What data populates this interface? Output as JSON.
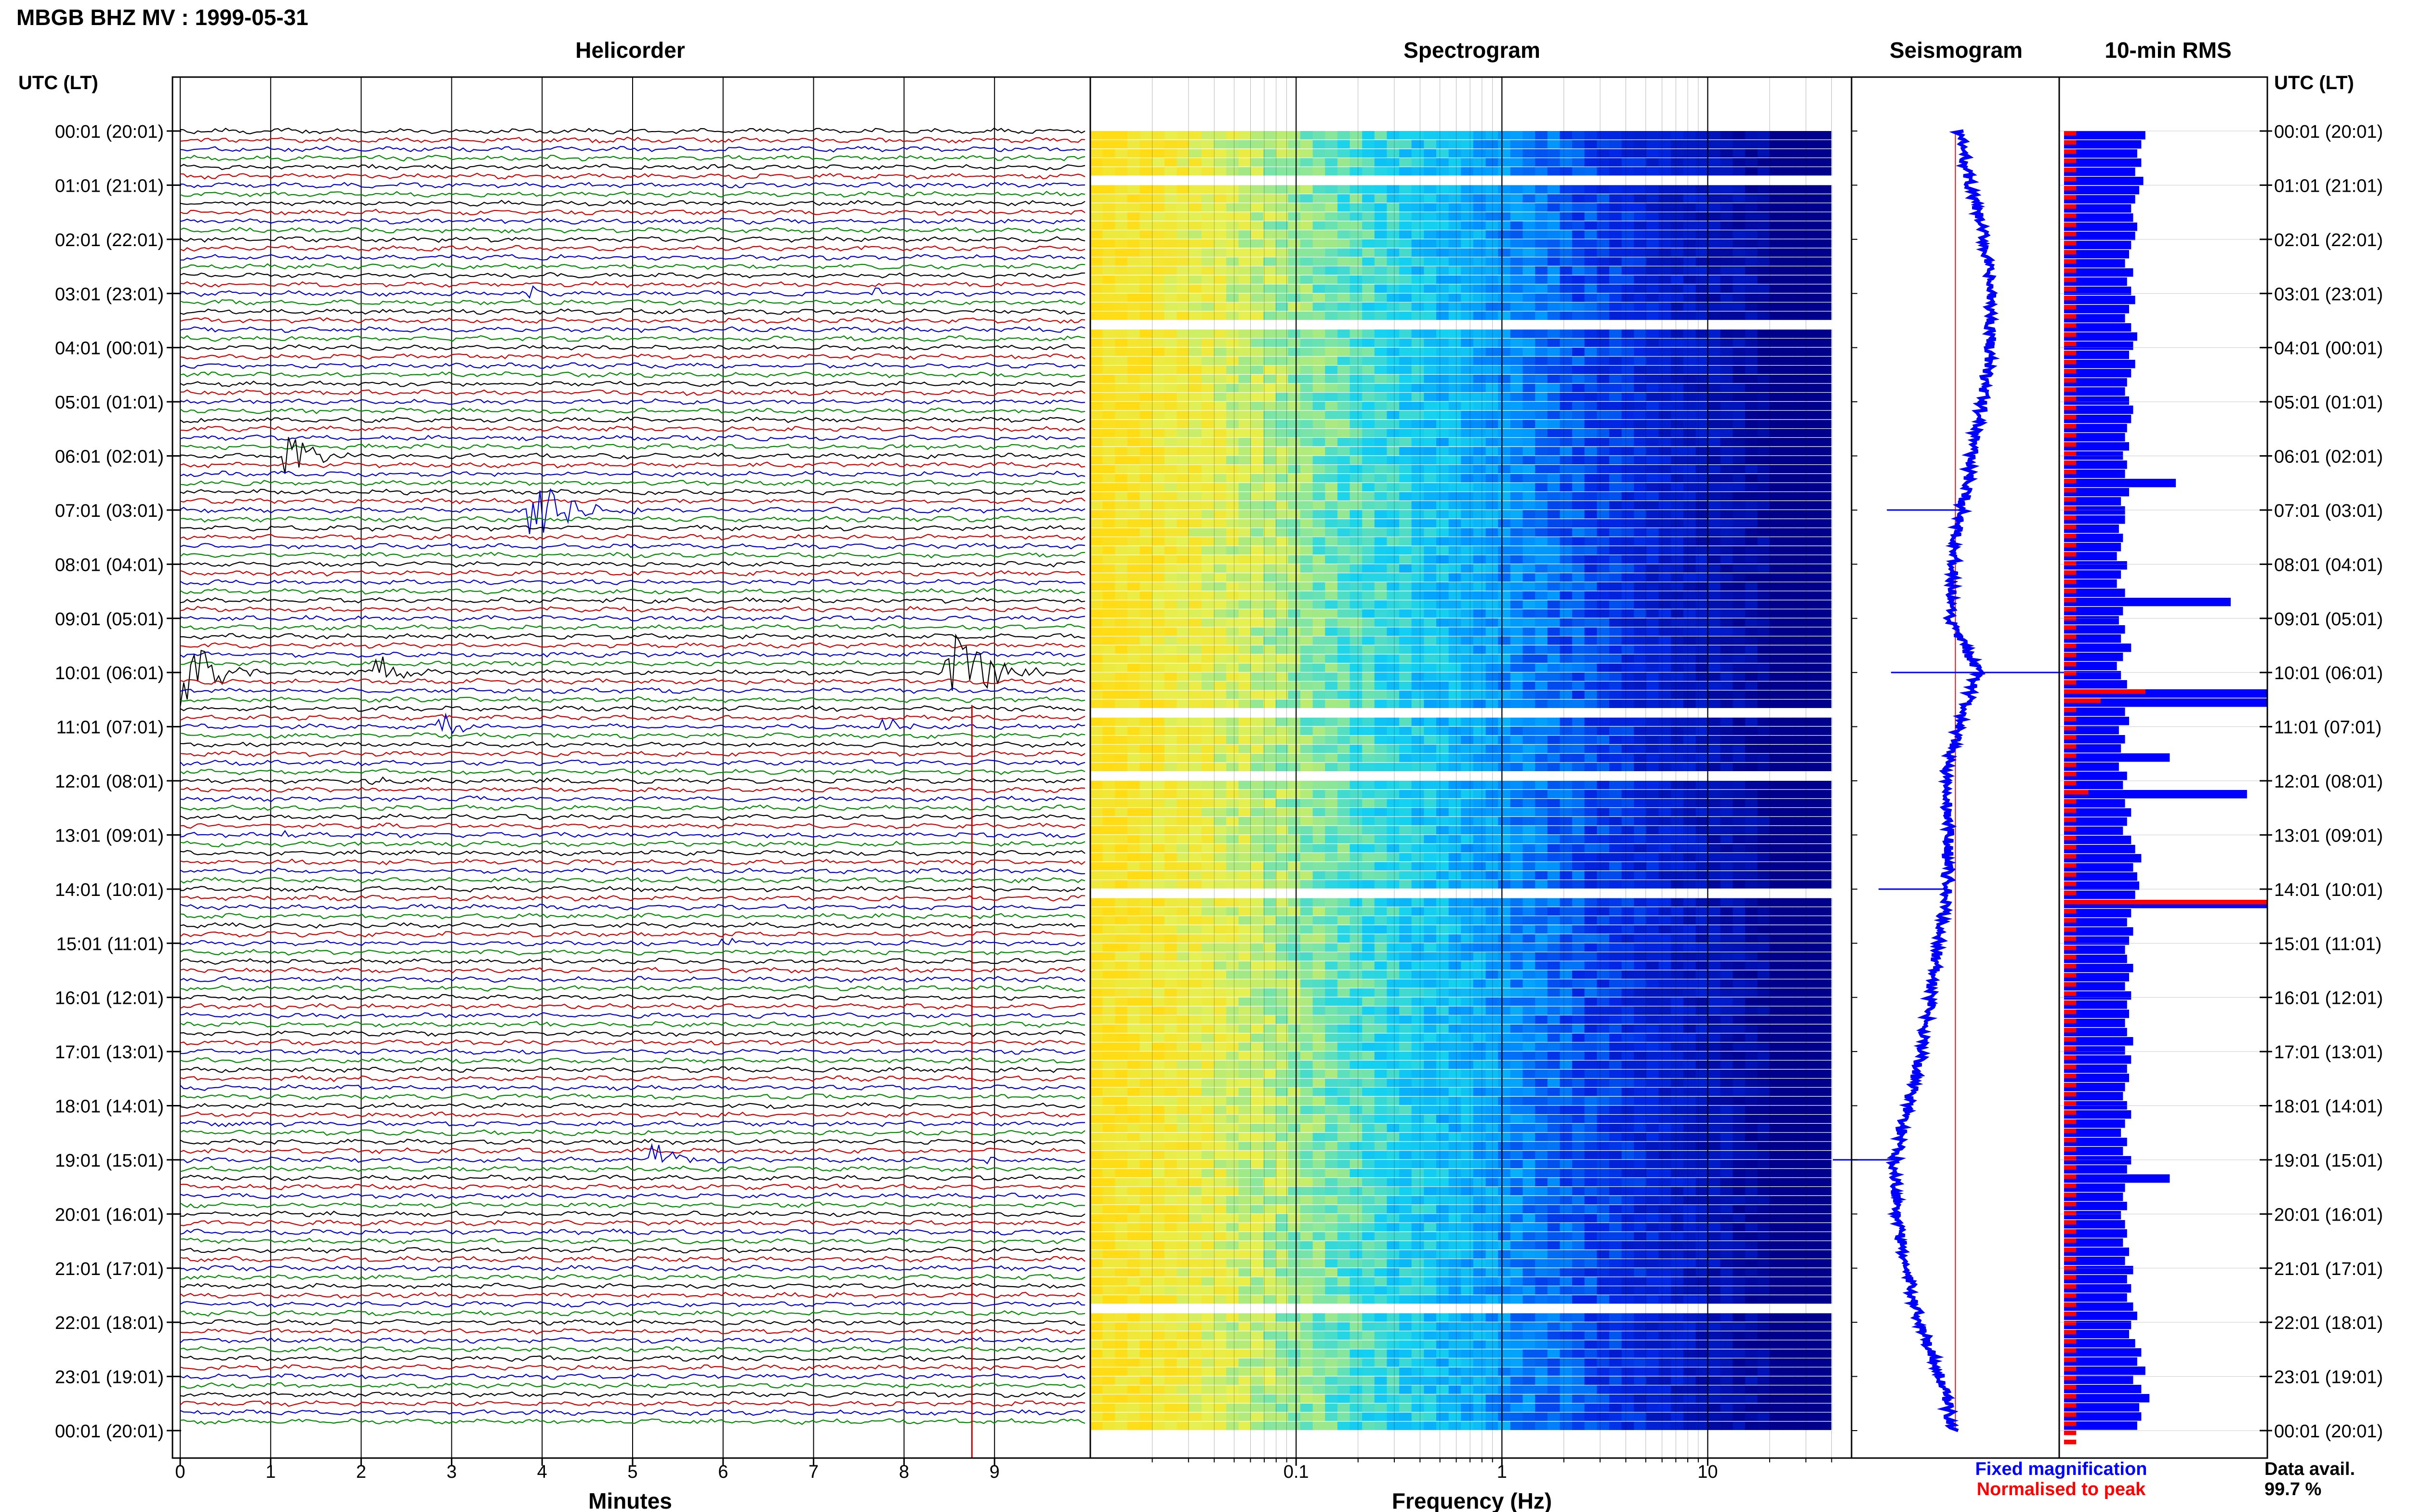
{
  "header": {
    "title": "MBGB BHZ MV : 1999-05-31"
  },
  "panels": {
    "helicorder": "Helicorder",
    "spectrogram": "Spectrogram",
    "seismogram": "Seismogram",
    "rms": "10-min RMS"
  },
  "axis": {
    "time_header_left": "UTC (LT)",
    "time_header_right": "UTC (LT)",
    "minutes_label": "Minutes",
    "frequency_label": "Frequency (Hz)"
  },
  "time_labels": [
    "00:01 (20:01)",
    "01:01 (21:01)",
    "02:01 (22:01)",
    "03:01 (23:01)",
    "04:01 (00:01)",
    "05:01 (01:01)",
    "06:01 (02:01)",
    "07:01 (03:01)",
    "08:01 (04:01)",
    "09:01 (05:01)",
    "10:01 (06:01)",
    "11:01 (07:01)",
    "12:01 (08:01)",
    "13:01 (09:01)",
    "14:01 (10:01)",
    "15:01 (11:01)",
    "16:01 (12:01)",
    "17:01 (13:01)",
    "18:01 (14:01)",
    "19:01 (15:01)",
    "20:01 (16:01)",
    "21:01 (17:01)",
    "22:01 (18:01)",
    "23:01 (19:01)",
    "00:01 (20:01)"
  ],
  "footer": {
    "legend_fixed": "Fixed magnification",
    "legend_normalised": "Normalised to peak",
    "data_avail_label": "Data avail.",
    "data_avail_value": "99.7 %"
  },
  "colors": {
    "trace_cycle": [
      "#000000",
      "#cc0000",
      "#0000cc",
      "#008800"
    ],
    "fixed": "#0000ff",
    "normalised": "#ff0000"
  },
  "chart_data": [
    {
      "type": "line",
      "name": "helicorder",
      "title": "Helicorder",
      "xlabel": "Minutes",
      "x_ticks": [
        0,
        1,
        2,
        3,
        4,
        5,
        6,
        7,
        8,
        9
      ],
      "xlim": [
        0,
        10
      ],
      "lines_per_hour": 6,
      "hours": 24,
      "events": [
        {
          "hour": 3,
          "minute": 3.9,
          "amp": 0.4,
          "dur": 0.3
        },
        {
          "hour": 3,
          "minute": 7.7,
          "amp": 0.35,
          "dur": 0.3
        },
        {
          "hour": 6,
          "minute": 1.2,
          "amp": 1.1,
          "dur": 0.8
        },
        {
          "hour": 7,
          "minute": 3.9,
          "amp": 1.8,
          "dur": 1.2
        },
        {
          "hour": 10,
          "minute": 0.0,
          "amp": 2.5,
          "dur": 1.0
        },
        {
          "hour": 10,
          "minute": 2.2,
          "amp": 0.9,
          "dur": 0.8
        },
        {
          "hour": 10,
          "minute": 8.5,
          "amp": 2.2,
          "dur": 1.4
        },
        {
          "hour": 11,
          "minute": 2.9,
          "amp": 1.2,
          "dur": 0.4
        },
        {
          "hour": 11,
          "minute": 7.8,
          "amp": 0.5,
          "dur": 1.0
        },
        {
          "hour": 12,
          "minute": 2.1,
          "amp": 0.4,
          "dur": 0.4
        },
        {
          "hour": 13,
          "minute": 1.2,
          "amp": 0.35,
          "dur": 0.3
        },
        {
          "hour": 15,
          "minute": 6.0,
          "amp": 0.45,
          "dur": 0.4
        },
        {
          "hour": 19,
          "minute": 5.2,
          "amp": 1.2,
          "dur": 0.7
        },
        {
          "hour": 19,
          "minute": 8.9,
          "amp": 0.4,
          "dur": 0.3
        }
      ]
    },
    {
      "type": "heatmap",
      "name": "spectrogram",
      "title": "Spectrogram",
      "xlabel": "Frequency (Hz)",
      "x_scale": "log",
      "xlim": [
        0.01,
        50
      ],
      "x_tick_labels": [
        "0.1",
        "1",
        "10"
      ],
      "x_tick_values": [
        0.1,
        1,
        10
      ],
      "fmax": 40,
      "gap_rows": [
        5,
        21,
        64,
        71,
        84,
        130,
        145
      ]
    },
    {
      "type": "line",
      "name": "seismogram",
      "title": "Seismogram",
      "series": [
        {
          "name": "Fixed magnification",
          "color": "#0000ff",
          "hourly_offset": [
            0.52,
            0.57,
            0.64,
            0.67,
            0.67,
            0.63,
            0.58,
            0.53,
            0.49,
            0.47,
            0.61,
            0.51,
            0.45,
            0.47,
            0.46,
            0.42,
            0.38,
            0.34,
            0.27,
            0.21,
            0.22,
            0.26,
            0.33,
            0.43,
            0.49
          ],
          "spikes": [
            {
              "hour": 7,
              "value": -0.6
            },
            {
              "hour": 10,
              "value": 0.98
            },
            {
              "hour": 10,
              "value": -0.7
            },
            {
              "hour": 14,
              "value": -0.55
            },
            {
              "hour": 19,
              "value": -0.5
            }
          ]
        },
        {
          "name": "Normalised to peak",
          "color": "#ff0000",
          "offset": 0.5
        }
      ]
    },
    {
      "type": "bar",
      "name": "10-min RMS",
      "title": "10-min RMS",
      "series": [
        {
          "name": "Fixed magnification",
          "color": "#0000ff",
          "values": [
            0.4,
            0.38,
            0.36,
            0.38,
            0.35,
            0.39,
            0.37,
            0.35,
            0.33,
            0.34,
            0.36,
            0.35,
            0.33,
            0.32,
            0.3,
            0.34,
            0.31,
            0.33,
            0.35,
            0.32,
            0.3,
            0.33,
            0.36,
            0.34,
            0.32,
            0.35,
            0.33,
            0.31,
            0.3,
            0.32,
            0.34,
            0.33,
            0.31,
            0.3,
            0.32,
            0.29,
            0.31,
            0.3,
            0.55,
            0.32,
            0.28,
            0.3,
            0.3,
            0.27,
            0.29,
            0.28,
            0.26,
            0.31,
            0.28,
            0.26,
            0.3,
            0.82,
            0.29,
            0.27,
            0.3,
            0.28,
            0.33,
            0.29,
            0.26,
            0.28,
            0.31,
            1.0,
            1.0,
            0.3,
            0.32,
            0.27,
            0.3,
            0.28,
            0.52,
            0.27,
            0.31,
            0.29,
            0.9,
            0.3,
            0.33,
            0.31,
            0.29,
            0.33,
            0.35,
            0.38,
            0.34,
            0.36,
            0.37,
            0.35,
            1.0,
            0.33,
            0.31,
            0.34,
            0.32,
            0.3,
            0.31,
            0.34,
            0.32,
            0.3,
            0.33,
            0.31,
            0.32,
            0.3,
            0.31,
            0.34,
            0.3,
            0.33,
            0.31,
            0.32,
            0.3,
            0.29,
            0.31,
            0.33,
            0.3,
            0.28,
            0.31,
            0.29,
            0.33,
            0.31,
            0.52,
            0.3,
            0.29,
            0.31,
            0.28,
            0.3,
            0.31,
            0.29,
            0.32,
            0.3,
            0.34,
            0.31,
            0.33,
            0.31,
            0.34,
            0.36,
            0.33,
            0.32,
            0.35,
            0.38,
            0.36,
            0.4,
            0.34,
            0.38,
            0.42,
            0.37,
            0.38,
            0.36
          ],
          "xlim": [
            0,
            1
          ]
        },
        {
          "name": "Normalised to peak",
          "color": "#ff0000",
          "values": [
            0.06,
            0.06,
            0.06,
            0.06,
            0.06,
            0.06,
            0.06,
            0.06,
            0.06,
            0.06,
            0.06,
            0.06,
            0.06,
            0.06,
            0.06,
            0.06,
            0.06,
            0.06,
            0.06,
            0.06,
            0.06,
            0.06,
            0.06,
            0.06,
            0.06,
            0.06,
            0.06,
            0.06,
            0.06,
            0.06,
            0.06,
            0.06,
            0.06,
            0.06,
            0.06,
            0.06,
            0.06,
            0.06,
            0.06,
            0.06,
            0.06,
            0.06,
            0.06,
            0.06,
            0.06,
            0.06,
            0.06,
            0.06,
            0.06,
            0.06,
            0.06,
            0.06,
            0.06,
            0.06,
            0.06,
            0.06,
            0.06,
            0.06,
            0.06,
            0.06,
            0.06,
            0.4,
            0.18,
            0.06,
            0.06,
            0.06,
            0.06,
            0.06,
            0.06,
            0.06,
            0.06,
            0.06,
            0.12,
            0.06,
            0.06,
            0.06,
            0.06,
            0.06,
            0.06,
            0.06,
            0.06,
            0.06,
            0.06,
            0.06,
            1.0,
            0.06,
            0.06,
            0.06,
            0.06,
            0.06,
            0.06,
            0.06,
            0.06,
            0.06,
            0.06,
            0.06,
            0.06,
            0.06,
            0.06,
            0.06,
            0.06,
            0.06,
            0.06,
            0.06,
            0.06,
            0.06,
            0.06,
            0.06,
            0.06,
            0.06,
            0.06,
            0.06,
            0.06,
            0.06,
            0.06,
            0.06,
            0.06,
            0.06,
            0.06,
            0.06,
            0.06,
            0.06,
            0.06,
            0.06,
            0.06,
            0.06,
            0.06,
            0.06,
            0.06,
            0.06,
            0.06,
            0.06,
            0.06,
            0.06,
            0.06,
            0.06,
            0.06,
            0.06,
            0.06,
            0.06,
            0.06,
            0.06,
            0.06,
            0.06
          ]
        }
      ]
    }
  ]
}
